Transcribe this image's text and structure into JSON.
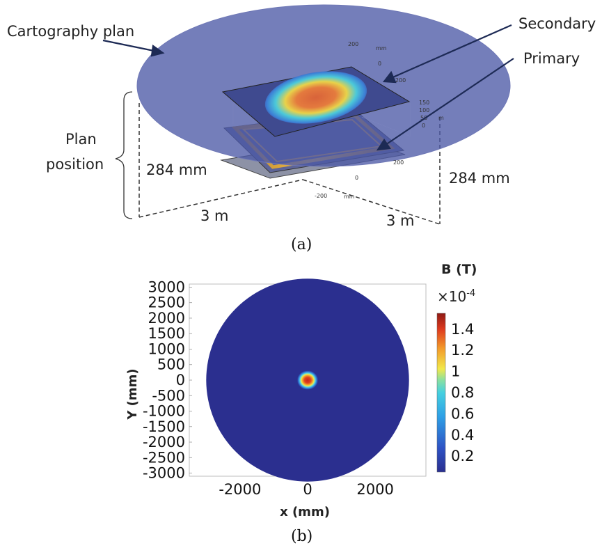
{
  "panel_a": {
    "caption": "(a)",
    "labels": {
      "cartography": "Cartography plan",
      "secondary": "Secondary",
      "primary": "Primary",
      "plan": "Plan",
      "position": "position",
      "height_left": "284 mm",
      "height_right": "284 mm",
      "dist_left": "3 m",
      "dist_right": "3 m"
    },
    "inner_axis_ticks": {
      "top": [
        "200",
        "mm",
        "0",
        "-200"
      ],
      "z": [
        "150",
        "100",
        "50",
        "0"
      ],
      "z_unit": "m",
      "bottom": [
        "200",
        "0",
        "-200",
        "mm"
      ]
    }
  },
  "panel_b": {
    "caption": "(b)",
    "colorbar": {
      "title": "B (T)",
      "exponent_base": "×10",
      "exponent_power": "-4",
      "ticks": [
        "1.4",
        "1.2",
        "1",
        "0.8",
        "0.6",
        "0.4",
        "0.2"
      ]
    },
    "colors": {
      "background_field": "#2b2f8f",
      "frame": "#bbbbbb"
    }
  },
  "chart_data": {
    "type": "heatmap",
    "xlabel": "x (mm)",
    "ylabel": "Y (mm)",
    "xlim": [
      -3500,
      3500
    ],
    "ylim": [
      -3100,
      3100
    ],
    "x_ticks": [
      "-2000",
      "0",
      "2000"
    ],
    "x_tick_values": [
      -2000,
      0,
      2000
    ],
    "y_ticks": [
      "3000",
      "2500",
      "2000",
      "1500",
      "1000",
      "500",
      "0",
      "-500",
      "-1000",
      "-1500",
      "-2000",
      "-2500",
      "-3000"
    ],
    "y_tick_values": [
      3000,
      2500,
      2000,
      1500,
      1000,
      500,
      0,
      -500,
      -1000,
      -1500,
      -2000,
      -2500,
      -3000
    ],
    "domain_radius_mm": 3000,
    "hotspot_halfwidth_mm": 300,
    "colorbar_range": [
      0.05,
      1.55
    ],
    "colorbar_tick_values": [
      1.4,
      1.2,
      1.0,
      0.8,
      0.6,
      0.4,
      0.2
    ],
    "peak_value": 1.45
  }
}
